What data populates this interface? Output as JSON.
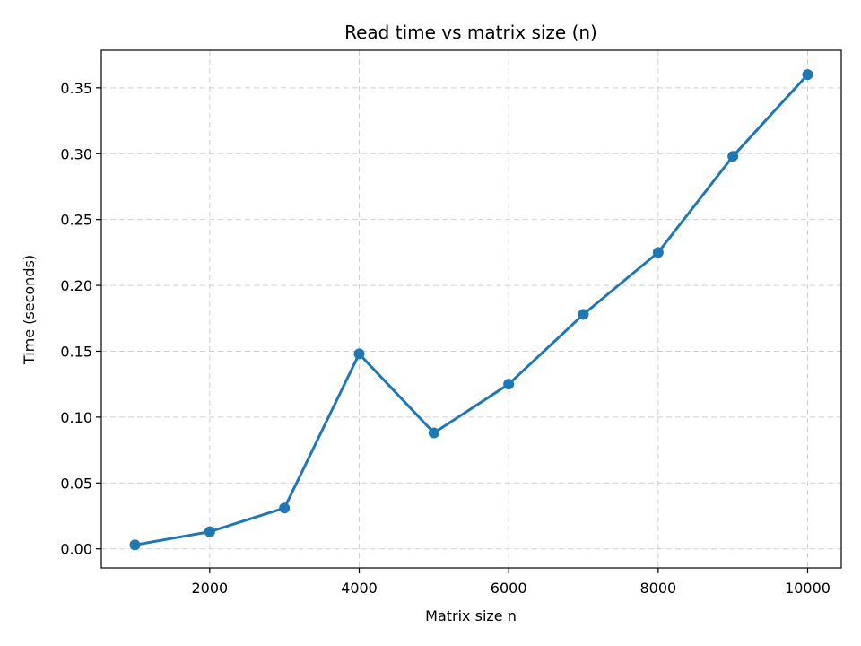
{
  "chart_data": {
    "type": "line",
    "title": "Read time vs matrix size (n)",
    "xlabel": "Matrix size n",
    "ylabel": "Time (seconds)",
    "x": [
      1000,
      2000,
      3000,
      4000,
      5000,
      6000,
      7000,
      8000,
      9000,
      10000
    ],
    "series": [
      {
        "values": [
          0.003,
          0.013,
          0.031,
          0.148,
          0.088,
          0.125,
          0.178,
          0.225,
          0.298,
          0.36
        ]
      }
    ],
    "xlim": [
      550,
      10450
    ],
    "ylim": [
      -0.0145,
      0.3785
    ],
    "xticks": [
      2000,
      4000,
      6000,
      8000,
      10000
    ],
    "xtick_labels": [
      "2000",
      "4000",
      "6000",
      "8000",
      "10000"
    ],
    "yticks": [
      0.0,
      0.05,
      0.1,
      0.15,
      0.2,
      0.25,
      0.3,
      0.35
    ],
    "ytick_labels": [
      "0.00",
      "0.05",
      "0.10",
      "0.15",
      "0.20",
      "0.25",
      "0.30",
      "0.35"
    ],
    "grid": true,
    "color": "#1f77b4"
  }
}
